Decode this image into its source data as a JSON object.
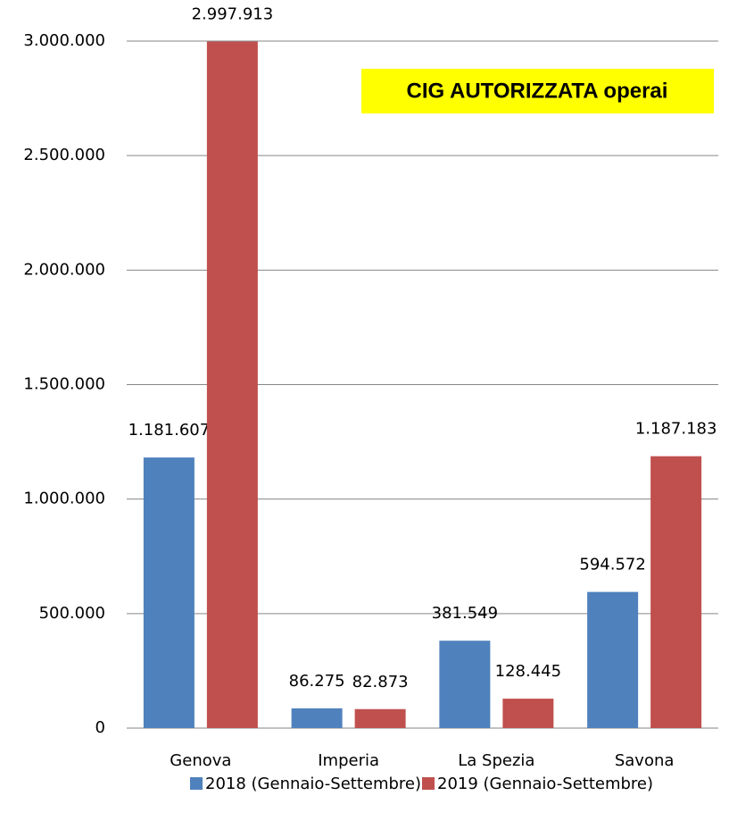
{
  "chart_data": {
    "type": "bar",
    "title": "CIG AUTORIZZATA operai",
    "categories": [
      "Genova",
      "Imperia",
      "La Spezia",
      "Savona"
    ],
    "series": [
      {
        "name": "2018 (Gennaio-Settembre)",
        "color": "#4f81bd",
        "values": [
          1181607,
          86275,
          381549,
          594572
        ],
        "value_labels": [
          "1.181.607",
          "86.275",
          "381.549",
          "594.572"
        ]
      },
      {
        "name": "2019 (Gennaio-Settembre)",
        "color": "#c0504d",
        "values": [
          2997913,
          82873,
          128445,
          1187183
        ],
        "value_labels": [
          "2.997.913",
          "82.873",
          "128.445",
          "1.187.183"
        ]
      }
    ],
    "ylim": [
      0,
      3000000
    ],
    "yticks": [
      0,
      {
        "value": 500000,
        "label": "500.000"
      },
      {
        "value": 1000000,
        "label": "1.000.000"
      },
      {
        "value": 1500000,
        "label": "1.500.000"
      },
      {
        "value": 2000000,
        "label": "2.000.000"
      },
      {
        "value": 2500000,
        "label": "2.500.000"
      },
      {
        "value": 3000000,
        "label": "3.000.000"
      }
    ],
    "grid": true,
    "legend": "bottom"
  }
}
